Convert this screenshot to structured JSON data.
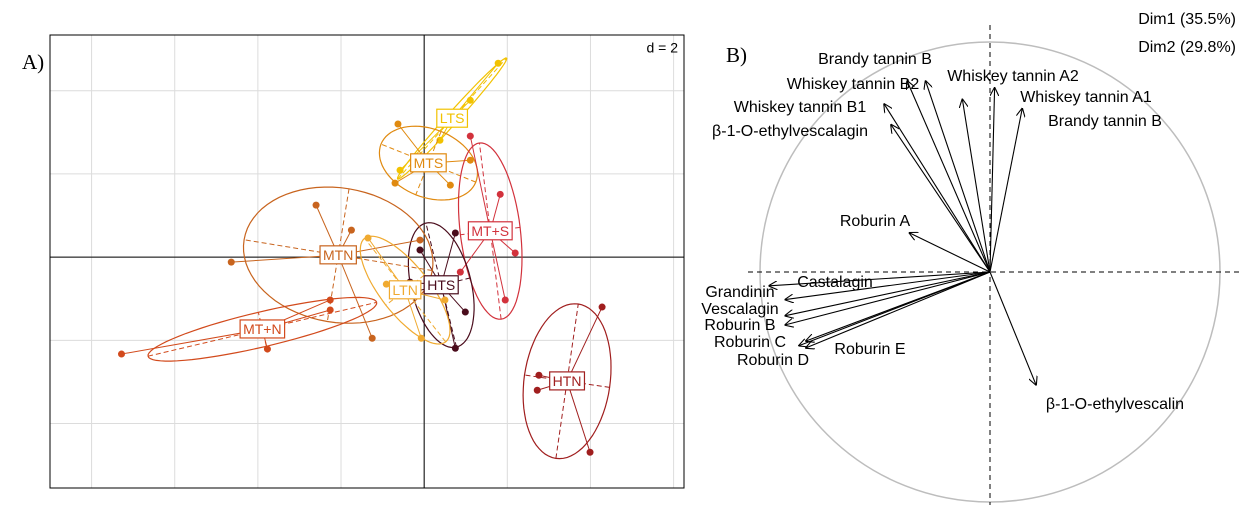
{
  "chart_data": [
    {
      "type": "scatter-class",
      "panel_label": "A)",
      "scale_label": "d = 2",
      "xlim": [
        -9,
        6.25
      ],
      "ylim": [
        -5.55,
        5.34
      ],
      "xticks": [
        -8,
        -6,
        -4,
        -2,
        0,
        2,
        4,
        6
      ],
      "yticks": [
        -4,
        -2,
        0,
        2,
        4
      ],
      "grid": true,
      "groups": [
        {
          "name": "LTS",
          "color": "#f2c200",
          "x": [
            1.78,
            1.11,
            0.38,
            -0.58
          ],
          "y": [
            4.66,
            3.77,
            2.81,
            2.09
          ]
        },
        {
          "name": "MTS",
          "color": "#e08a10",
          "x": [
            -0.63,
            1.11,
            -0.7,
            0.63
          ],
          "y": [
            3.2,
            2.33,
            1.78,
            1.73
          ]
        },
        {
          "name": "MT+S",
          "color": "#d2323c",
          "x": [
            1.11,
            1.83,
            2.19,
            1.95,
            0.87
          ],
          "y": [
            2.91,
            1.51,
            0.1,
            -1.03,
            -0.36
          ]
        },
        {
          "name": "HTS",
          "color": "#4a0c1c",
          "x": [
            0.75,
            -0.1,
            0.99,
            0.75,
            -0.34
          ],
          "y": [
            0.58,
            0.17,
            -1.32,
            -2.19,
            -0.6
          ]
        },
        {
          "name": "MTN",
          "color": "#c8641e",
          "x": [
            -2.6,
            -4.64,
            -1.25,
            -0.1,
            -1.75
          ],
          "y": [
            1.25,
            -0.12,
            -1.95,
            0.41,
            0.65
          ]
        },
        {
          "name": "LTN",
          "color": "#f0aa30",
          "x": [
            -1.35,
            -0.07,
            0.5,
            -0.91
          ],
          "y": [
            0.46,
            -1.95,
            -1.03,
            -0.65
          ]
        },
        {
          "name": "MT+N",
          "color": "#d24a1c",
          "x": [
            -7.28,
            -3.77,
            -2.26,
            -2.26,
            -3.89
          ],
          "y": [
            -2.33,
            -2.21,
            -1.03,
            -1.27,
            -1.83
          ]
        },
        {
          "name": "HTN",
          "color": "#a01e1e",
          "x": [
            4.28,
            3.99,
            2.72,
            2.76
          ],
          "y": [
            -1.2,
            -4.69,
            -3.2,
            -2.84
          ]
        }
      ]
    },
    {
      "type": "correlation-circle",
      "panel_label": "B)",
      "dim1_label": "Dim1 (35.5%)",
      "dim2_label": "Dim2 (29.8%)",
      "xlim": [
        -1,
        1
      ],
      "ylim": [
        -1,
        1
      ],
      "vectors": [
        {
          "label": "Brandy tannin B",
          "x": -0.28,
          "y": 0.83
        },
        {
          "label": "Whiskey tannin B2",
          "x": -0.36,
          "y": 0.83
        },
        {
          "label": "Whiskey tannin B1",
          "x": -0.46,
          "y": 0.73
        },
        {
          "label": "β-1-O-ethylvescalagin",
          "x": -0.43,
          "y": 0.64
        },
        {
          "label": "Whiskey tannin A2",
          "x": -0.12,
          "y": 0.75
        },
        {
          "label": "Whiskey tannin A1",
          "x": 0.02,
          "y": 0.8
        },
        {
          "label": "Brandy tannin B",
          "x": 0.14,
          "y": 0.71
        },
        {
          "label": "Roburin A",
          "x": -0.35,
          "y": 0.17
        },
        {
          "label": "Castalagin",
          "x": -0.96,
          "y": -0.06
        },
        {
          "label": "Grandinin",
          "x": -0.89,
          "y": -0.12
        },
        {
          "label": "Vescalagin",
          "x": -0.89,
          "y": -0.19
        },
        {
          "label": "Roburin B",
          "x": -0.89,
          "y": -0.23
        },
        {
          "label": "Roburin C",
          "x": -0.83,
          "y": -0.32
        },
        {
          "label": "Roburin D",
          "x": -0.8,
          "y": -0.33
        },
        {
          "label": "Roburin E",
          "x": -0.8,
          "y": -0.3
        },
        {
          "label": "β-1-O-ethylvescalin",
          "x": 0.2,
          "y": -0.49
        }
      ]
    }
  ]
}
